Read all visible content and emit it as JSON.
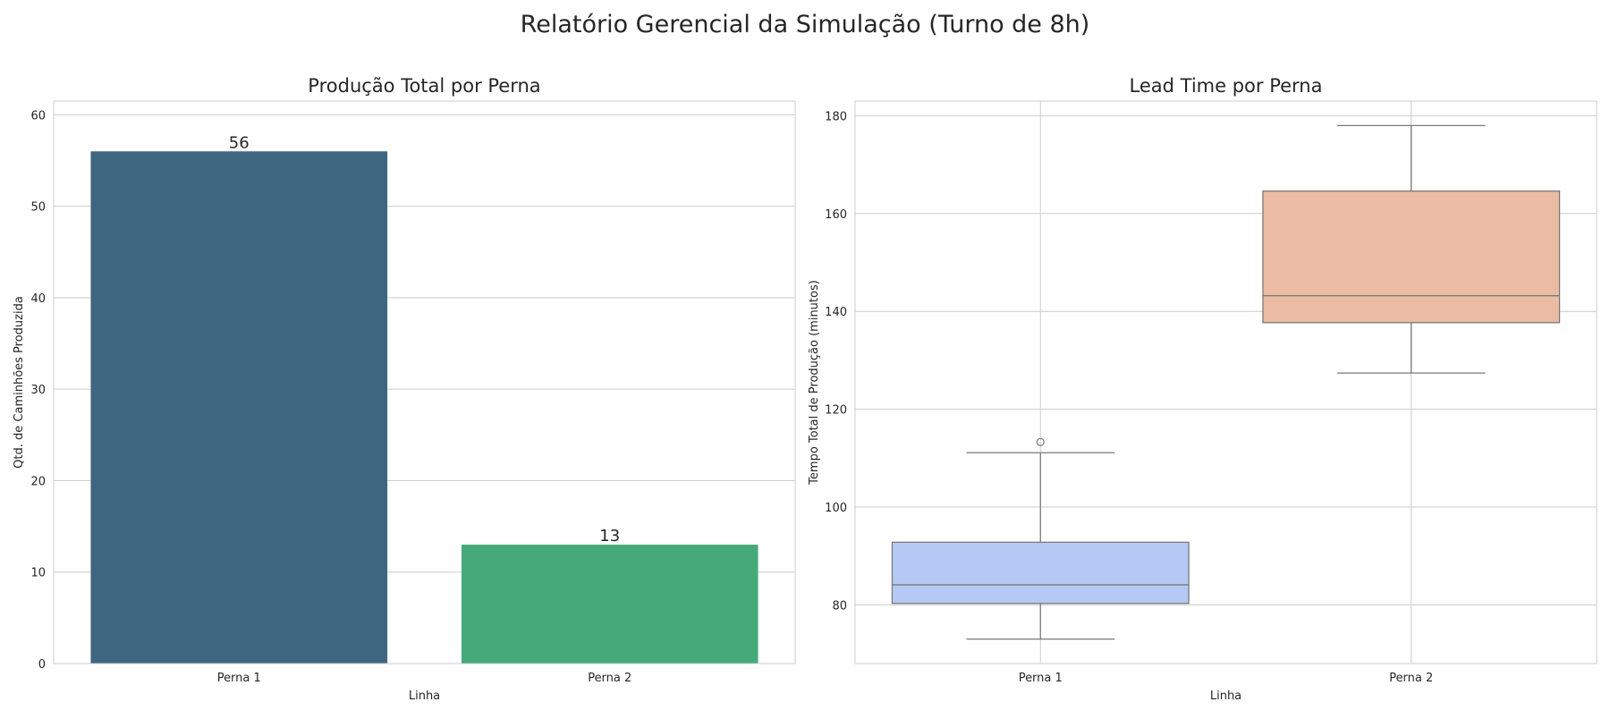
{
  "figure": {
    "suptitle": "Relatório Gerencial da Simulação (Turno de 8h)"
  },
  "chart_data": [
    {
      "type": "bar",
      "title": "Produção Total por Perna",
      "xlabel": "Linha",
      "ylabel": "Qtd. de Caminhões Produzida",
      "categories": [
        "Perna 1",
        "Perna 2"
      ],
      "values": [
        56,
        13
      ],
      "data_labels": [
        "56",
        "13"
      ],
      "colors": [
        "#3e6680",
        "#46a97a"
      ],
      "ylim": [
        0,
        61.5
      ],
      "yticks": [
        0,
        10,
        20,
        30,
        40,
        50,
        60
      ],
      "grid": "y"
    },
    {
      "type": "box",
      "title": "Lead Time por Perna",
      "xlabel": "Linha",
      "ylabel": "Tempo Total de Produção (minutos)",
      "categories": [
        "Perna 1",
        "Perna 2"
      ],
      "boxes": [
        {
          "category": "Perna 1",
          "whisker_low": 73,
          "q1": 80.3,
          "median": 84.1,
          "q3": 92.8,
          "whisker_high": 111.1,
          "outliers": [
            113.3
          ],
          "color": "#b5c9f4"
        },
        {
          "category": "Perna 2",
          "whisker_low": 127.4,
          "q1": 137.7,
          "median": 143.2,
          "q3": 164.6,
          "whisker_high": 178,
          "outliers": [],
          "color": "#ecbba3"
        }
      ],
      "ylim": [
        68,
        183
      ],
      "yticks": [
        80,
        100,
        120,
        140,
        160,
        180
      ],
      "grid": "both"
    }
  ]
}
